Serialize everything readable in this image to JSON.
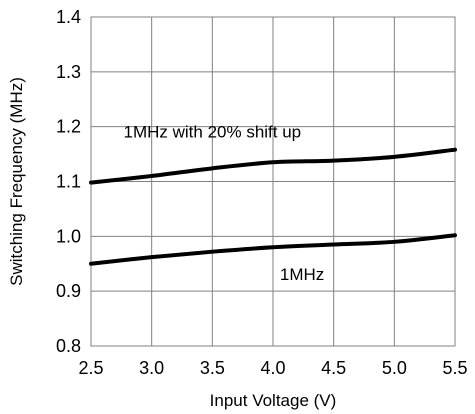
{
  "chart_data": {
    "type": "line",
    "title": "",
    "xlabel": "Input Voltage (V)",
    "ylabel": "Switching Frequency (MHz)",
    "xlim": [
      2.5,
      5.5
    ],
    "ylim": [
      0.8,
      1.4
    ],
    "grid": true,
    "legend": "none",
    "x_ticks": [
      "2.5",
      "3.0",
      "3.5",
      "4.0",
      "4.5",
      "5.0",
      "5.5"
    ],
    "y_ticks": [
      "0.8",
      "0.9",
      "1.0",
      "1.1",
      "1.2",
      "1.3",
      "1.4"
    ],
    "series": [
      {
        "color": "#000000",
        "points": [
          {
            "x": 2.5,
            "y": 1.098
          },
          {
            "x": 3.0,
            "y": 1.11
          },
          {
            "x": 3.5,
            "y": 1.124
          },
          {
            "x": 4.0,
            "y": 1.135
          },
          {
            "x": 4.5,
            "y": 1.138
          },
          {
            "x": 5.0,
            "y": 1.145
          },
          {
            "x": 5.5,
            "y": 1.158
          }
        ]
      },
      {
        "color": "#000000",
        "points": [
          {
            "x": 2.5,
            "y": 0.95
          },
          {
            "x": 3.0,
            "y": 0.962
          },
          {
            "x": 3.5,
            "y": 0.972
          },
          {
            "x": 4.0,
            "y": 0.98
          },
          {
            "x": 4.5,
            "y": 0.985
          },
          {
            "x": 5.0,
            "y": 0.99
          },
          {
            "x": 5.5,
            "y": 1.002
          }
        ]
      }
    ],
    "annotations": [
      {
        "text": "1MHz with 20% shift up",
        "x": 3.5,
        "y": 1.18
      },
      {
        "text": "1MHz",
        "x": 4.24,
        "y": 0.92
      }
    ]
  }
}
